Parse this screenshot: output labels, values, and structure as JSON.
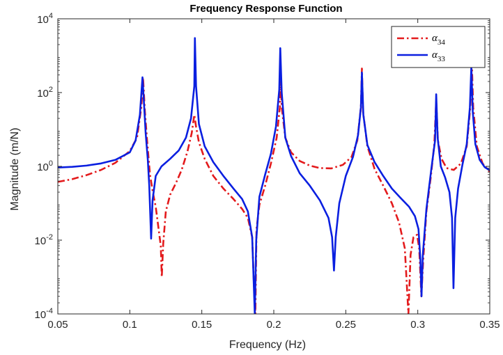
{
  "chart_data": {
    "type": "line",
    "title": "Frequency Response Function",
    "xlabel": "Frequency (Hz)",
    "ylabel": "Magnitude (m/N)",
    "xlim": [
      0.05,
      0.35
    ],
    "ylim": [
      0.0001,
      10000
    ],
    "yscale": "log",
    "grid": false,
    "legend_position": "top-right",
    "x_ticks": [
      {
        "value": 0.05,
        "label": "0.05"
      },
      {
        "value": 0.1,
        "label": "0.1"
      },
      {
        "value": 0.15,
        "label": "0.15"
      },
      {
        "value": 0.2,
        "label": "0.2"
      },
      {
        "value": 0.25,
        "label": "0.25"
      },
      {
        "value": 0.3,
        "label": "0.3"
      },
      {
        "value": 0.35,
        "label": "0.35"
      }
    ],
    "y_ticks": [
      {
        "value": 0.0001,
        "base": "10",
        "exp": "-4"
      },
      {
        "value": 0.01,
        "base": "10",
        "exp": "-2"
      },
      {
        "value": 1,
        "base": "10",
        "exp": "0"
      },
      {
        "value": 100,
        "base": "10",
        "exp": "2"
      },
      {
        "value": 10000,
        "base": "10",
        "exp": "4"
      }
    ],
    "series": [
      {
        "name": "α34",
        "legend_base": "α",
        "legend_sub": "34",
        "color": "#e31a1c",
        "style": "dashdot",
        "points": [
          [
            0.05,
            0.38
          ],
          [
            0.06,
            0.45
          ],
          [
            0.07,
            0.58
          ],
          [
            0.08,
            0.8
          ],
          [
            0.09,
            1.25
          ],
          [
            0.1,
            2.6
          ],
          [
            0.105,
            6
          ],
          [
            0.108,
            40
          ],
          [
            0.1092,
            250
          ],
          [
            0.1105,
            30
          ],
          [
            0.112,
            5
          ],
          [
            0.114,
            0.6
          ],
          [
            0.116,
            0.2
          ],
          [
            0.118,
            0.08
          ],
          [
            0.12,
            0.02
          ],
          [
            0.1215,
            0.007
          ],
          [
            0.1222,
            0.001
          ],
          [
            0.1232,
            0.008
          ],
          [
            0.125,
            0.06
          ],
          [
            0.128,
            0.17
          ],
          [
            0.132,
            0.35
          ],
          [
            0.136,
            0.8
          ],
          [
            0.14,
            2.5
          ],
          [
            0.143,
            8
          ],
          [
            0.1448,
            25
          ],
          [
            0.146,
            12
          ],
          [
            0.148,
            4.5
          ],
          [
            0.152,
            1.6
          ],
          [
            0.158,
            0.55
          ],
          [
            0.165,
            0.25
          ],
          [
            0.172,
            0.13
          ],
          [
            0.178,
            0.07
          ],
          [
            0.182,
            0.04
          ],
          [
            0.185,
            0.012
          ],
          [
            0.1865,
            0.0003
          ],
          [
            0.1872,
            0.0001
          ],
          [
            0.188,
            0.02
          ],
          [
            0.19,
            0.09
          ],
          [
            0.194,
            0.3
          ],
          [
            0.198,
            1.2
          ],
          [
            0.202,
            6
          ],
          [
            0.2042,
            40
          ],
          [
            0.2048,
            200
          ],
          [
            0.2055,
            40
          ],
          [
            0.208,
            6
          ],
          [
            0.212,
            2.4
          ],
          [
            0.218,
            1.4
          ],
          [
            0.225,
            1.05
          ],
          [
            0.232,
            0.9
          ],
          [
            0.24,
            0.88
          ],
          [
            0.248,
            1.1
          ],
          [
            0.254,
            1.8
          ],
          [
            0.258,
            5
          ],
          [
            0.2605,
            40
          ],
          [
            0.2612,
            450
          ],
          [
            0.262,
            30
          ],
          [
            0.265,
            3.5
          ],
          [
            0.27,
            0.85
          ],
          [
            0.276,
            0.3
          ],
          [
            0.282,
            0.1
          ],
          [
            0.287,
            0.03
          ],
          [
            0.291,
            0.006
          ],
          [
            0.2935,
            0.0001
          ],
          [
            0.295,
            0.004
          ],
          [
            0.297,
            0.012
          ],
          [
            0.2995,
            0.014
          ],
          [
            0.301,
            0.006
          ],
          [
            0.3025,
            0.0003
          ],
          [
            0.3038,
            0.003
          ],
          [
            0.306,
            0.06
          ],
          [
            0.309,
            0.5
          ],
          [
            0.3115,
            4
          ],
          [
            0.3128,
            60
          ],
          [
            0.314,
            5
          ],
          [
            0.3165,
            1.6
          ],
          [
            0.32,
            0.9
          ],
          [
            0.325,
            0.8
          ],
          [
            0.33,
            1.2
          ],
          [
            0.334,
            3.5
          ],
          [
            0.3365,
            40
          ],
          [
            0.3375,
            700
          ],
          [
            0.3385,
            40
          ],
          [
            0.341,
            3.5
          ],
          [
            0.345,
            1.2
          ],
          [
            0.35,
            0.7
          ]
        ]
      },
      {
        "name": "α33",
        "legend_base": "α",
        "legend_sub": "33",
        "color": "#0a1fe0",
        "style": "solid",
        "points": [
          [
            0.05,
            0.93
          ],
          [
            0.06,
            0.97
          ],
          [
            0.07,
            1.05
          ],
          [
            0.08,
            1.2
          ],
          [
            0.09,
            1.5
          ],
          [
            0.1,
            2.4
          ],
          [
            0.104,
            5
          ],
          [
            0.107,
            25
          ],
          [
            0.1088,
            260
          ],
          [
            0.11,
            40
          ],
          [
            0.111,
            8
          ],
          [
            0.1125,
            1.5
          ],
          [
            0.1135,
            0.3
          ],
          [
            0.1142,
            0.05
          ],
          [
            0.1148,
            0.011
          ],
          [
            0.1158,
            0.12
          ],
          [
            0.118,
            0.55
          ],
          [
            0.122,
            1.0
          ],
          [
            0.128,
            1.6
          ],
          [
            0.134,
            2.7
          ],
          [
            0.139,
            6
          ],
          [
            0.1425,
            20
          ],
          [
            0.1448,
            150
          ],
          [
            0.1452,
            3000
          ],
          [
            0.146,
            150
          ],
          [
            0.148,
            14
          ],
          [
            0.152,
            3.5
          ],
          [
            0.158,
            1.3
          ],
          [
            0.165,
            0.55
          ],
          [
            0.172,
            0.25
          ],
          [
            0.178,
            0.13
          ],
          [
            0.182,
            0.06
          ],
          [
            0.185,
            0.012
          ],
          [
            0.1868,
            0.0001
          ],
          [
            0.1878,
            0.01
          ],
          [
            0.19,
            0.15
          ],
          [
            0.194,
            0.6
          ],
          [
            0.198,
            2.2
          ],
          [
            0.2015,
            12
          ],
          [
            0.2038,
            120
          ],
          [
            0.2045,
            1600
          ],
          [
            0.2055,
            100
          ],
          [
            0.208,
            6
          ],
          [
            0.212,
            1.9
          ],
          [
            0.218,
            0.65
          ],
          [
            0.225,
            0.3
          ],
          [
            0.232,
            0.12
          ],
          [
            0.238,
            0.04
          ],
          [
            0.2405,
            0.012
          ],
          [
            0.2418,
            0.0015
          ],
          [
            0.243,
            0.012
          ],
          [
            0.2455,
            0.1
          ],
          [
            0.25,
            0.55
          ],
          [
            0.255,
            1.8
          ],
          [
            0.2585,
            7
          ],
          [
            0.2605,
            40
          ],
          [
            0.2612,
            350
          ],
          [
            0.2622,
            25
          ],
          [
            0.265,
            3.8
          ],
          [
            0.27,
            1.3
          ],
          [
            0.276,
            0.55
          ],
          [
            0.282,
            0.25
          ],
          [
            0.288,
            0.14
          ],
          [
            0.294,
            0.08
          ],
          [
            0.298,
            0.045
          ],
          [
            0.3005,
            0.02
          ],
          [
            0.3018,
            0.003
          ],
          [
            0.3026,
            0.0003
          ],
          [
            0.3035,
            0.004
          ],
          [
            0.306,
            0.07
          ],
          [
            0.3095,
            0.9
          ],
          [
            0.312,
            5
          ],
          [
            0.3128,
            90
          ],
          [
            0.3138,
            6
          ],
          [
            0.316,
            1.0
          ],
          [
            0.319,
            0.5
          ],
          [
            0.322,
            0.2
          ],
          [
            0.3238,
            0.04
          ],
          [
            0.3248,
            0.0005
          ],
          [
            0.326,
            0.04
          ],
          [
            0.328,
            0.25
          ],
          [
            0.331,
            1.1
          ],
          [
            0.334,
            4
          ],
          [
            0.3362,
            40
          ],
          [
            0.3372,
            500
          ],
          [
            0.3382,
            30
          ],
          [
            0.34,
            4
          ],
          [
            0.343,
            1.5
          ],
          [
            0.3465,
            0.95
          ],
          [
            0.35,
            0.78
          ]
        ]
      }
    ]
  }
}
